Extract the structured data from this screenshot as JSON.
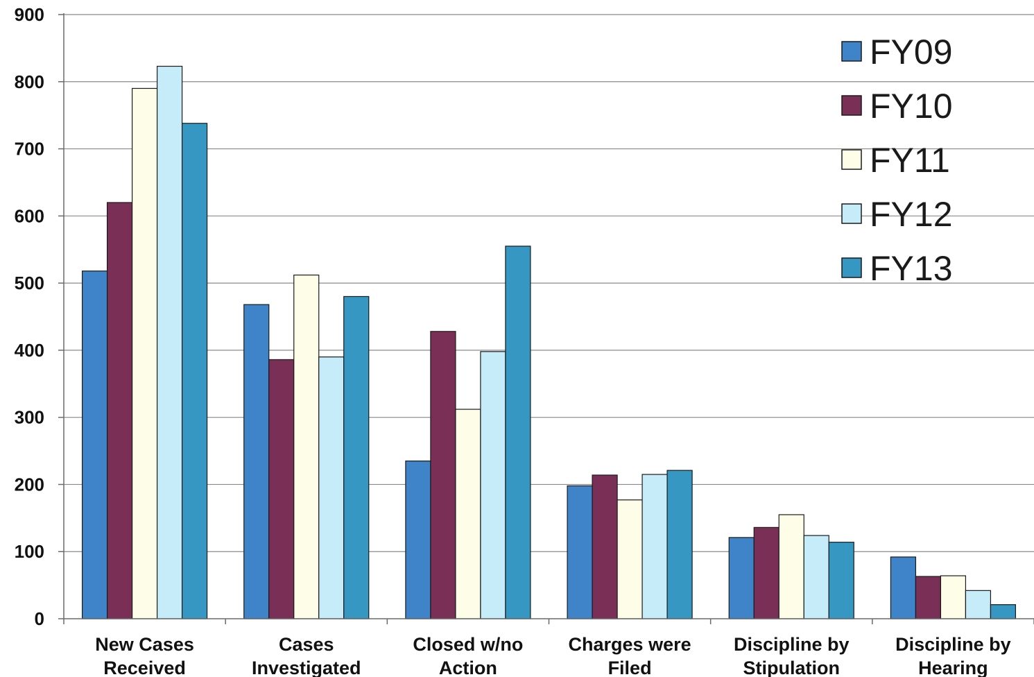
{
  "chart_data": {
    "type": "bar",
    "categories": [
      [
        "New Cases",
        "Received"
      ],
      [
        "Cases",
        "Investigated"
      ],
      [
        "Closed w/no",
        "Action"
      ],
      [
        "Charges were",
        "Filed"
      ],
      [
        "Discipline by",
        "Stipulation"
      ],
      [
        "Discipline by",
        "Hearing"
      ]
    ],
    "series": [
      {
        "name": "FY09",
        "color": "#3f84c8",
        "values": [
          518,
          468,
          235,
          198,
          121,
          92
        ]
      },
      {
        "name": "FY10",
        "color": "#7a2f57",
        "values": [
          620,
          386,
          428,
          214,
          136,
          63
        ]
      },
      {
        "name": "FY11",
        "color": "#fdfde8",
        "values": [
          790,
          512,
          312,
          177,
          155,
          64
        ]
      },
      {
        "name": "FY12",
        "color": "#c6ecf9",
        "values": [
          823,
          390,
          398,
          215,
          124,
          42
        ]
      },
      {
        "name": "FY13",
        "color": "#3597c2",
        "values": [
          738,
          480,
          555,
          221,
          114,
          21
        ]
      }
    ],
    "ylim": [
      0,
      900
    ],
    "yticks": [
      0,
      100,
      200,
      300,
      400,
      500,
      600,
      700,
      800,
      900
    ],
    "grid": true,
    "legend_position": "top-right"
  }
}
